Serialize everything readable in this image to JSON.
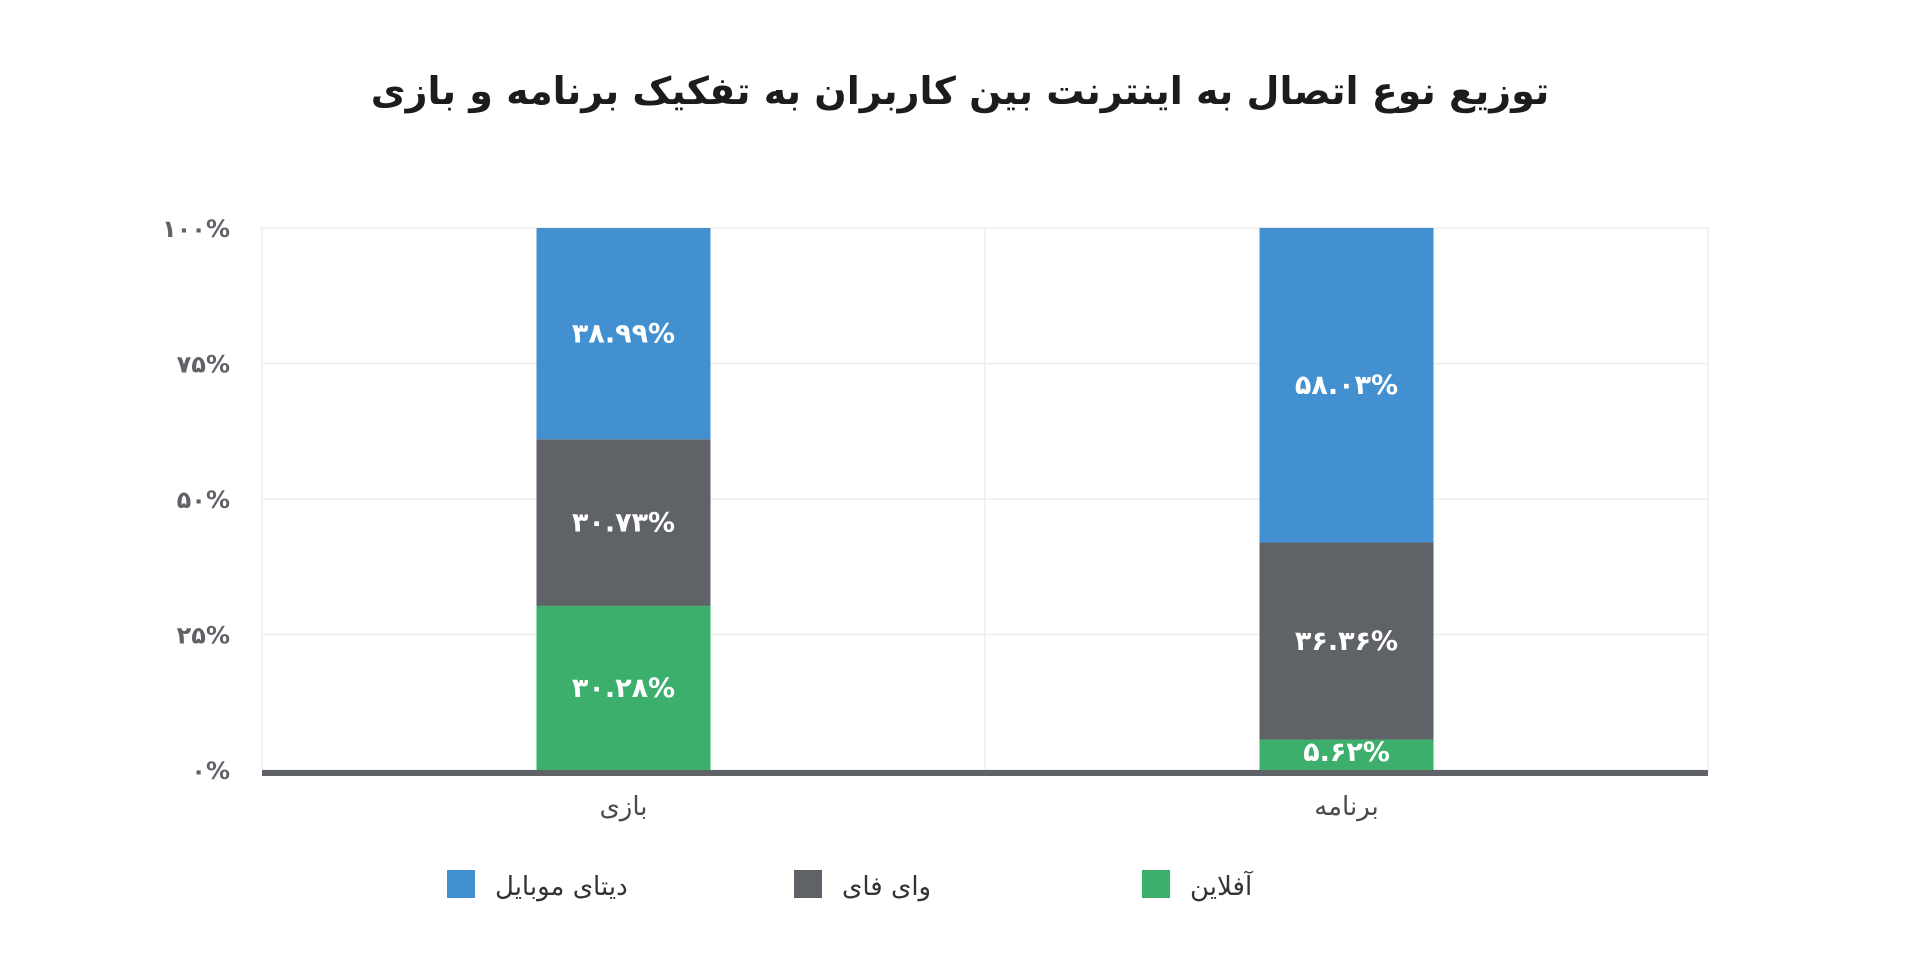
{
  "chart_data": {
    "type": "bar",
    "stacked": true,
    "title": "توزیع نوع اتصال به اینترنت بین کاربران به تفکیک برنامه و بازی",
    "categories": [
      "بازی",
      "برنامه"
    ],
    "series": [
      {
        "name": "آفلاین",
        "values": [
          30.28,
          5.62
        ],
        "labels": [
          "۳۰.۲۸%",
          "۵.۶۲%"
        ],
        "color": "#3daf6d"
      },
      {
        "name": "وای فای",
        "values": [
          30.73,
          36.36
        ],
        "labels": [
          "۳۰.۷۳%",
          "۳۶.۳۶%"
        ],
        "color": "#5f6266"
      },
      {
        "name": "دیتای موبایل",
        "values": [
          38.99,
          58.03
        ],
        "labels": [
          "۳۸.۹۹%",
          "۵۸.۰۳%"
        ],
        "color": "#4390d0"
      }
    ],
    "yticks": [
      {
        "value": 0,
        "label": "۰%"
      },
      {
        "value": 25,
        "label": "۲۵%"
      },
      {
        "value": 50,
        "label": "۵۰%"
      },
      {
        "value": 75,
        "label": "۷۵%"
      },
      {
        "value": 100,
        "label": "۱۰۰%"
      }
    ],
    "ylim": [
      0,
      100
    ],
    "grid": true,
    "legend_position": "bottom",
    "legend_order": [
      "دیتای موبایل",
      "وای فای",
      "آفلاین"
    ],
    "xlabel": "",
    "ylabel": ""
  }
}
